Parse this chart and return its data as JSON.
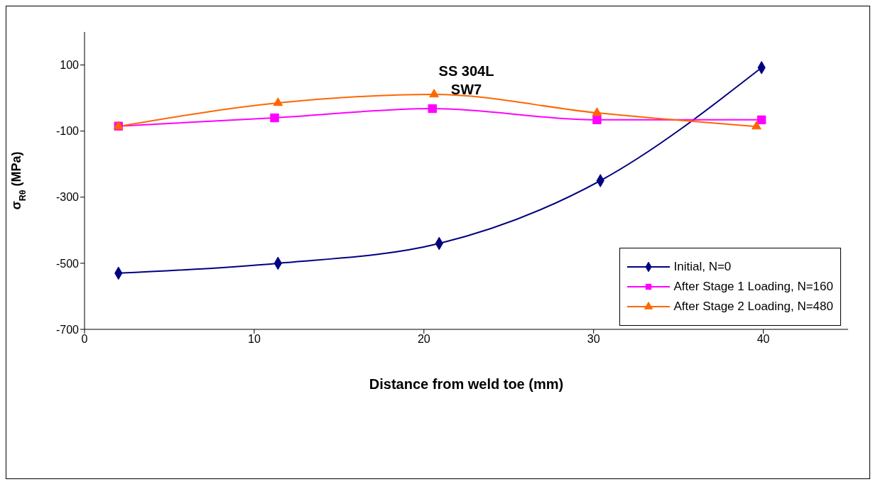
{
  "chart_data": {
    "type": "line",
    "title": "SS 304L\nSW7",
    "xlabel": "Distance from weld toe (mm)",
    "ylabel": "σ$_{Rθ}$ (MPa)",
    "xlim": [
      0,
      45
    ],
    "xticks": [
      0,
      10,
      20,
      30,
      40
    ],
    "ylim": [
      -700,
      200
    ],
    "yticks": [
      -700,
      -500,
      -300,
      -100,
      100
    ],
    "grid": false,
    "legend": "bottom right",
    "line_style": "solid",
    "series": [
      {
        "name": "Initial, N=0",
        "color": "#000080",
        "marker": "diamond",
        "x": [
          2,
          11.4,
          20.9,
          30.4,
          39.9
        ],
        "values": [
          -530,
          -500,
          -440,
          -250,
          92
        ]
      },
      {
        "name": "After Stage 1 Loading, N=160",
        "color": "#ff00ff",
        "marker": "square",
        "x": [
          2,
          11.2,
          20.5,
          30.2,
          39.9
        ],
        "values": [
          -85,
          -60,
          -32,
          -66,
          -66
        ]
      },
      {
        "name": "After Stage 2 Loading, N=480",
        "color": "#ff6600",
        "marker": "triangle",
        "x": [
          2,
          11.4,
          20.6,
          30.2,
          39.6
        ],
        "values": [
          -86,
          -15,
          11,
          -45,
          -86
        ]
      }
    ]
  }
}
